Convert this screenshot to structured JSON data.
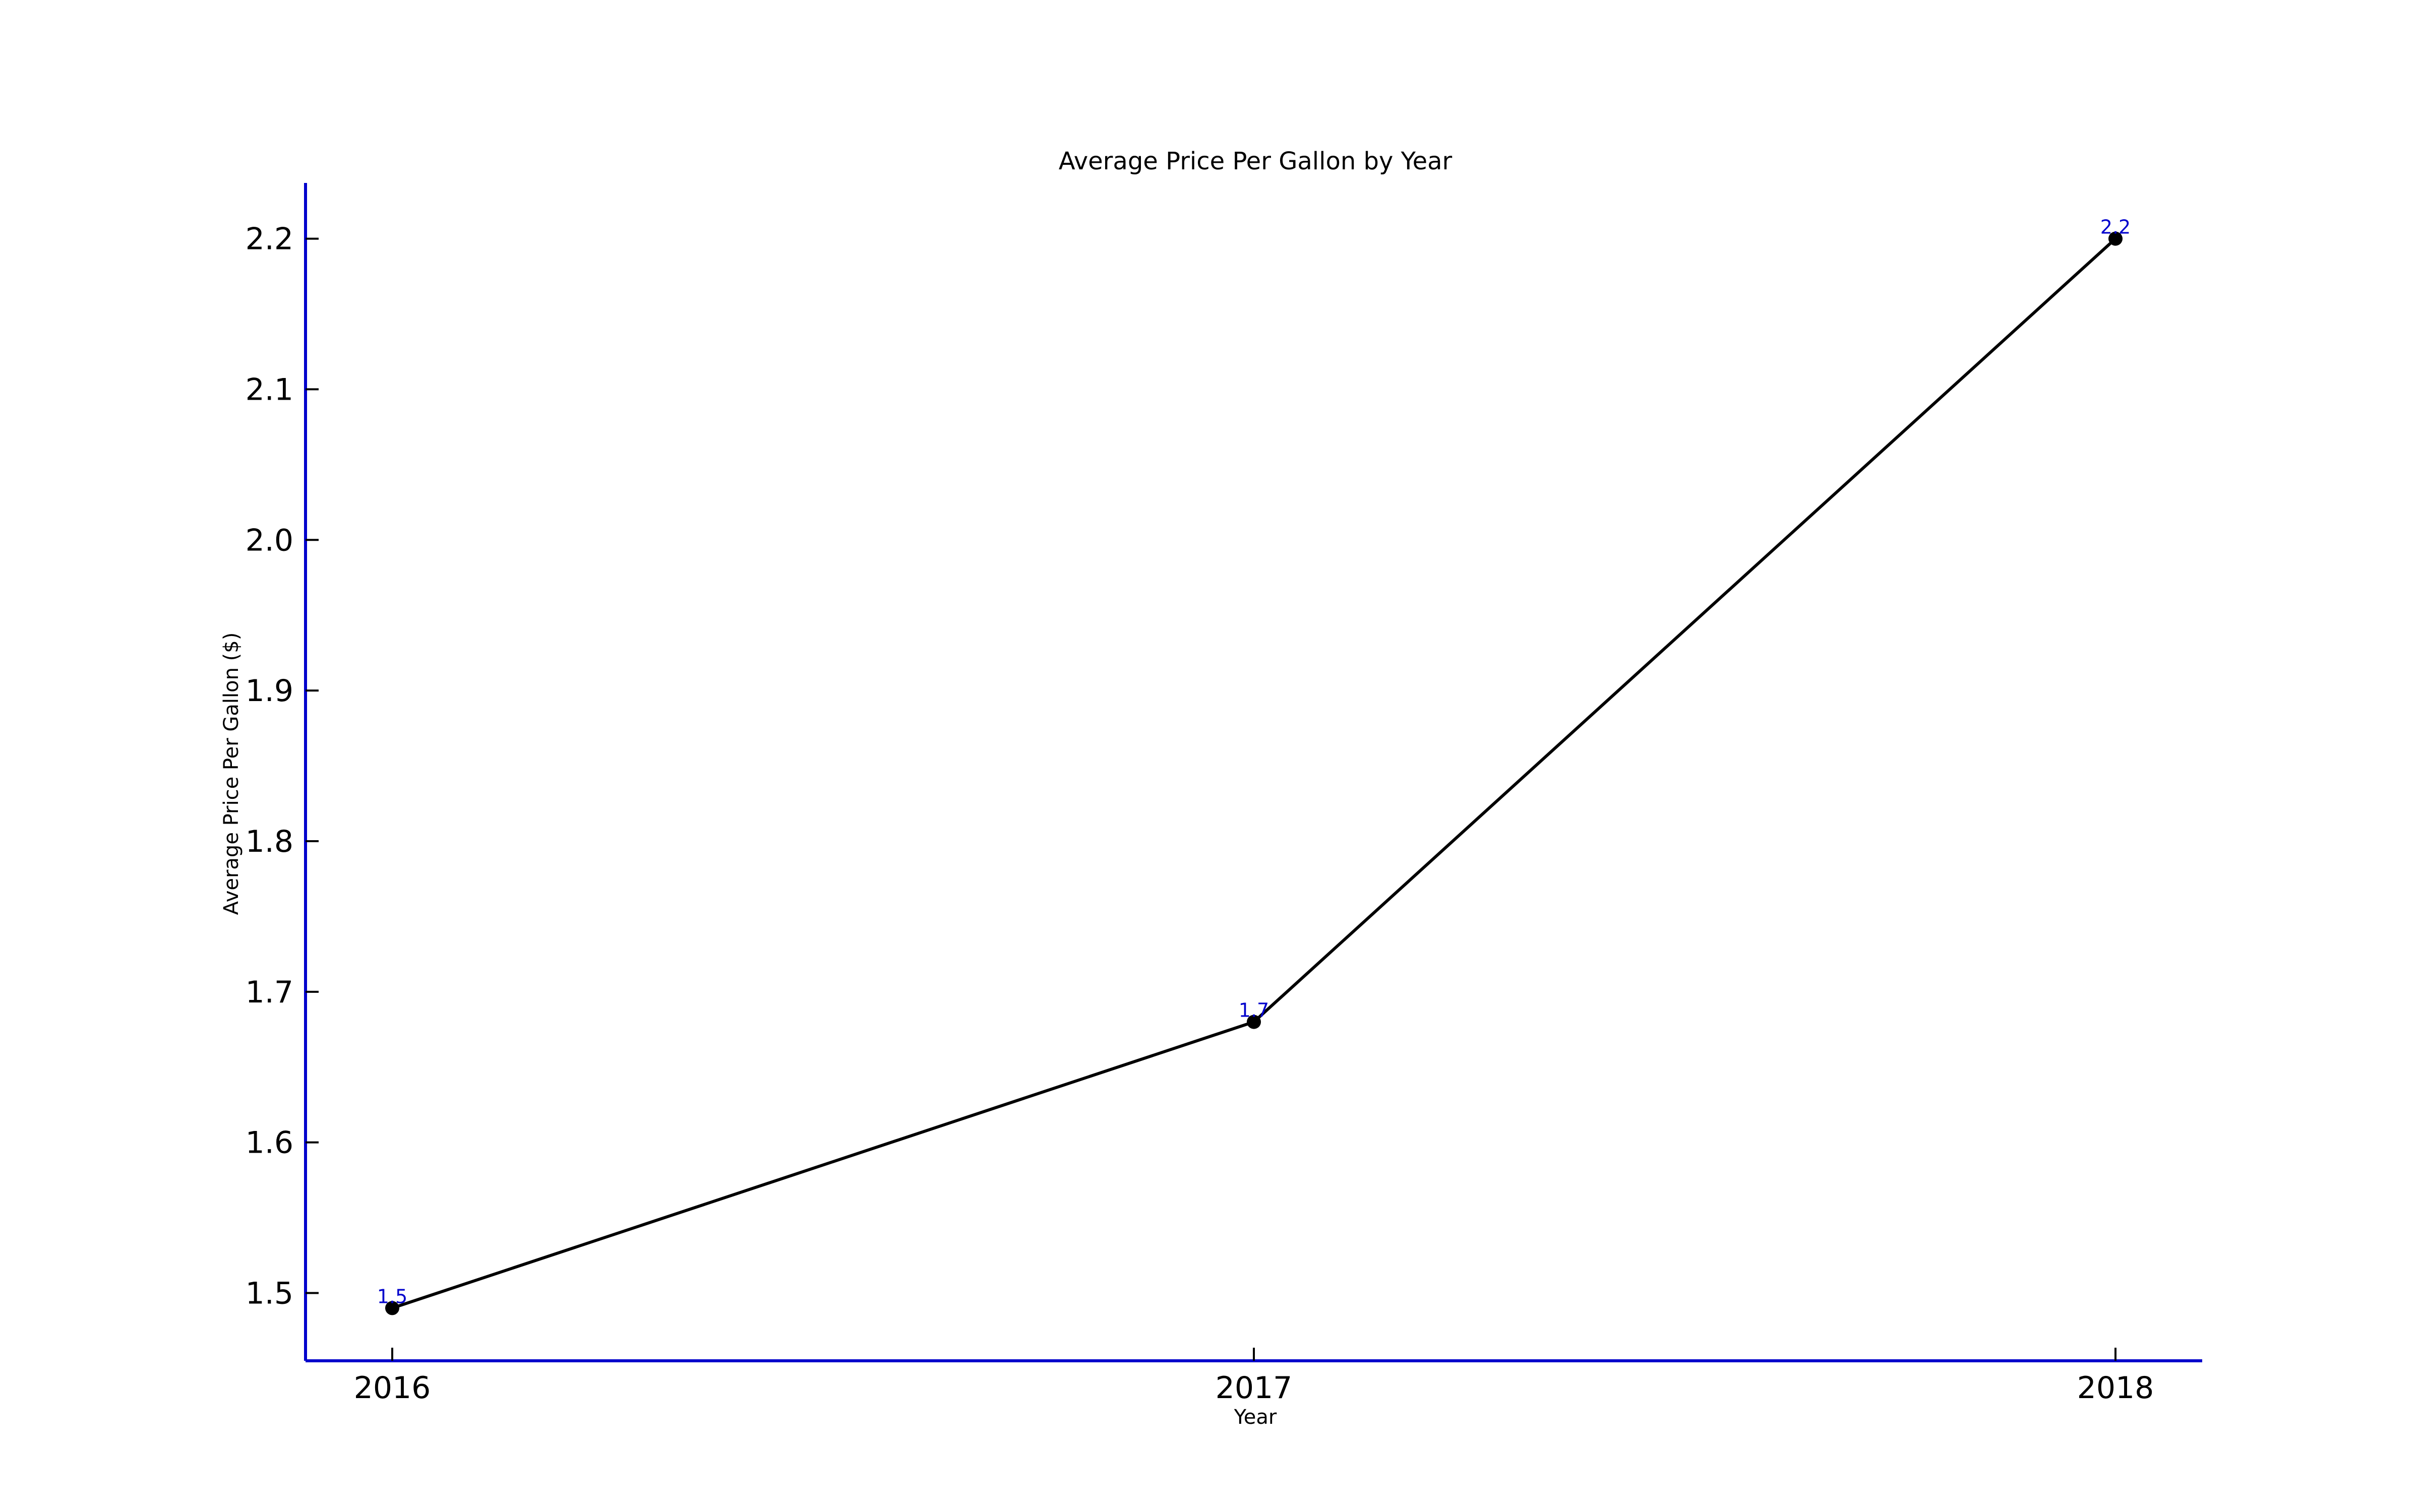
{
  "chart_data": {
    "type": "line",
    "title": "Average Price Per Gallon by Year",
    "xlabel": "Year",
    "ylabel": "Average Price Per Gallon ($)",
    "categories": [
      "2016",
      "2017",
      "2018"
    ],
    "series": [
      {
        "values": [
          1.49,
          1.68,
          2.2
        ],
        "data_labels": [
          "1.5",
          "1.7",
          "2.2"
        ]
      }
    ],
    "ylim": [
      1.455,
      2.237
    ],
    "yticks": [
      1.5,
      1.6,
      1.7,
      1.8,
      1.9,
      2.0,
      2.1,
      2.2
    ],
    "ytick_labels": [
      "1.5",
      "1.6",
      "1.7",
      "1.8",
      "1.9",
      "2.0",
      "2.1",
      "2.2"
    ],
    "grid": false,
    "colors": {
      "line": "#000000",
      "marker": "#000000",
      "axis": "#0000cc",
      "data_label": "#0000cc"
    }
  }
}
